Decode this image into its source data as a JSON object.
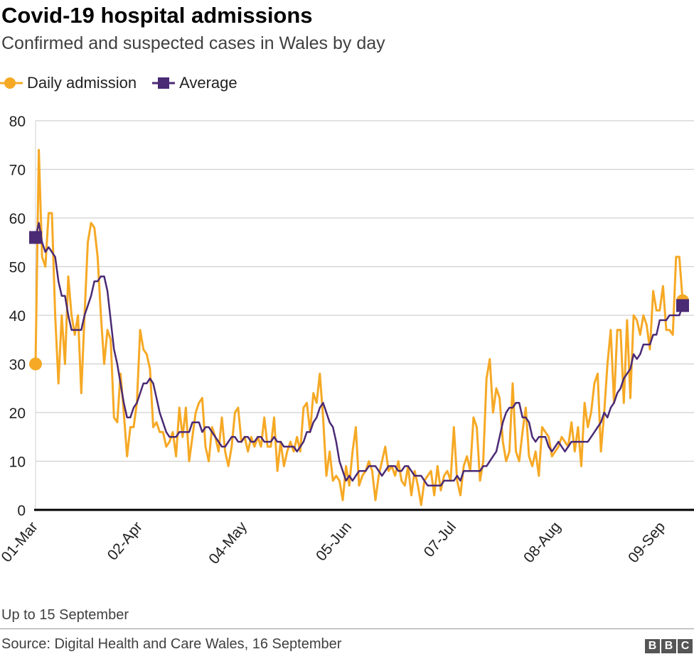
{
  "title": "Covid-19 hospital admissions",
  "subtitle": "Confirmed and suspected cases in Wales by day",
  "note": "Up to 15 September",
  "source": "Source: Digital Health and Care Wales, 16 September",
  "logo": "BBC",
  "colors": {
    "daily": "#f6a925",
    "average": "#4a2a75",
    "grid": "#d0d0d0"
  },
  "chart_data": {
    "type": "line",
    "title": "Covid-19 hospital admissions",
    "subtitle": "Confirmed and suspected cases in Wales by day",
    "x_start": "01-Mar",
    "x_end": "15-Sep",
    "xtick_labels": [
      "01-Mar",
      "02-Apr",
      "04-May",
      "05-Jun",
      "07-Jul",
      "08-Aug",
      "09-Sep"
    ],
    "xtick_days": [
      0,
      32,
      64,
      96,
      128,
      160,
      192
    ],
    "ylim": [
      0,
      80
    ],
    "yticks": [
      0,
      10,
      20,
      30,
      40,
      50,
      60,
      70,
      80
    ],
    "grid": true,
    "legend": "top-left",
    "series": [
      {
        "name": "Daily admission",
        "values": [
          30,
          74,
          52,
          50,
          61,
          61,
          40,
          26,
          40,
          30,
          48,
          40,
          36,
          40,
          24,
          40,
          55,
          59,
          58,
          52,
          40,
          30,
          37,
          35,
          19,
          18,
          28,
          20,
          11,
          17,
          17,
          22,
          37,
          33,
          32,
          29,
          17,
          18,
          16,
          16,
          13,
          14,
          16,
          11,
          21,
          15,
          21,
          10,
          15,
          20,
          22,
          23,
          13,
          10,
          17,
          15,
          12,
          19,
          12,
          9,
          13,
          20,
          21,
          14,
          15,
          12,
          15,
          13,
          15,
          13,
          19,
          13,
          13,
          19,
          8,
          14,
          9,
          12,
          14,
          12,
          15,
          12,
          21,
          22,
          16,
          24,
          22,
          28,
          19,
          7,
          12,
          6,
          7,
          6,
          2,
          9,
          5,
          12,
          17,
          5,
          7,
          8,
          10,
          8,
          2,
          7,
          10,
          13,
          8,
          9,
          7,
          10,
          6,
          5,
          9,
          3,
          8,
          5,
          1,
          6,
          7,
          8,
          3,
          9,
          4,
          7,
          8,
          6,
          17,
          6,
          3,
          9,
          11,
          8,
          19,
          17,
          6,
          10,
          27,
          31,
          20,
          25,
          23,
          14,
          10,
          12,
          26,
          12,
          10,
          16,
          21,
          11,
          9,
          12,
          7,
          17,
          16,
          15,
          11,
          12,
          13,
          15,
          14,
          13,
          18,
          12,
          17,
          9,
          22,
          17,
          20,
          26,
          28,
          12,
          20,
          30,
          37,
          22,
          37,
          37,
          22,
          39,
          23,
          40,
          39,
          36,
          40,
          38,
          33,
          45,
          41,
          41,
          46,
          37,
          37,
          36,
          52,
          52,
          43
        ]
      },
      {
        "name": "Average",
        "values": [
          56,
          59,
          55,
          53,
          54,
          53,
          52,
          47,
          44,
          44,
          40,
          37,
          37,
          37,
          37,
          40,
          42,
          44,
          47,
          47,
          48,
          48,
          45,
          39,
          33,
          30,
          26,
          22,
          19,
          19,
          21,
          22,
          24,
          26,
          26,
          27,
          26,
          23,
          20,
          18,
          16,
          15,
          15,
          15,
          16,
          16,
          16,
          16,
          18,
          18,
          18,
          16,
          17,
          17,
          16,
          15,
          14,
          13,
          13,
          14,
          15,
          15,
          14,
          14,
          15,
          15,
          14,
          14,
          15,
          15,
          14,
          14,
          14,
          15,
          14,
          14,
          13,
          13,
          13,
          13,
          12,
          13,
          14,
          16,
          16,
          18,
          19,
          21,
          22,
          20,
          18,
          17,
          14,
          10,
          8,
          6,
          7,
          6,
          7,
          8,
          8,
          8,
          9,
          9,
          9,
          8,
          7,
          8,
          9,
          9,
          9,
          8,
          8,
          9,
          9,
          8,
          7,
          7,
          7,
          6,
          5,
          5,
          5,
          5,
          5,
          6,
          6,
          6,
          6,
          7,
          6,
          8,
          8,
          8,
          8,
          8,
          8,
          9,
          9,
          10,
          11,
          12,
          15,
          18,
          20,
          21,
          21,
          22,
          22,
          19,
          19,
          18,
          15,
          14,
          15,
          15,
          15,
          13,
          12,
          13,
          14,
          13,
          12,
          13,
          14,
          14,
          14,
          14,
          14,
          14,
          15,
          16,
          17,
          18,
          20,
          19,
          21,
          22,
          24,
          25,
          27,
          28,
          29,
          32,
          31,
          32,
          34,
          34,
          34,
          36,
          36,
          39,
          39,
          39,
          40,
          40,
          40,
          40,
          42
        ]
      }
    ]
  }
}
